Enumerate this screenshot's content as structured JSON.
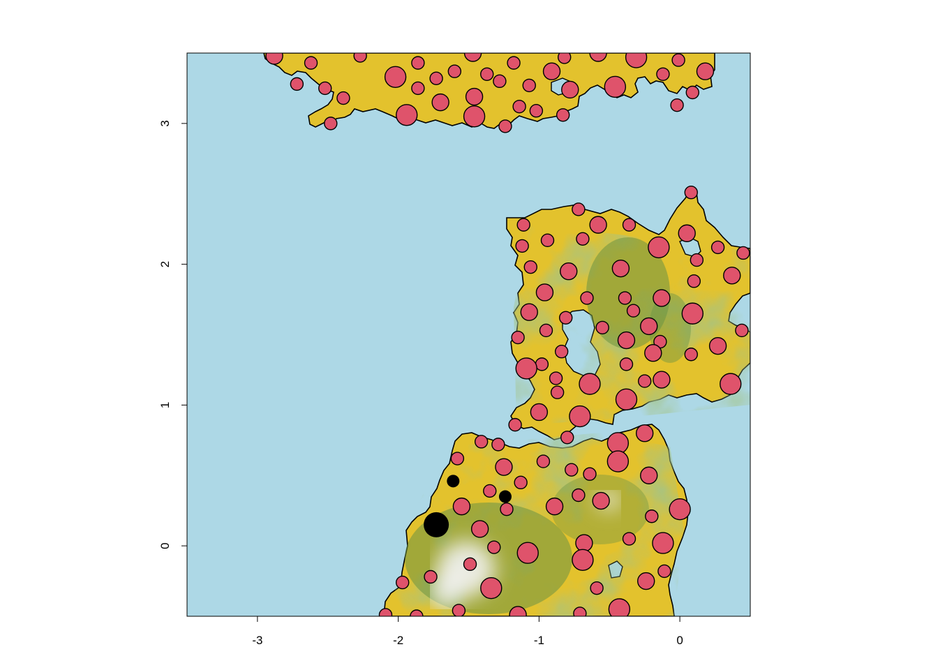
{
  "map": {
    "water_color": "#add8e6",
    "land_low_color": "#e3c22d",
    "land_mid_color": "#5f8c3c",
    "land_high_color": "#f2f2f2",
    "point_color": "#df536b",
    "special_point_color": "#000000",
    "xlim": [
      -3.5,
      0.5
    ],
    "ylim": [
      -0.5,
      3.5
    ],
    "x_ticks": [
      {
        "value": -3,
        "label": "-3"
      },
      {
        "value": -2,
        "label": "-2"
      },
      {
        "value": -1,
        "label": "-1"
      },
      {
        "value": 0,
        "label": "0"
      }
    ],
    "y_ticks": [
      {
        "value": 0,
        "label": "0"
      },
      {
        "value": 1,
        "label": "1"
      },
      {
        "value": 2,
        "label": "2"
      },
      {
        "value": 3,
        "label": "3"
      }
    ],
    "points": [
      {
        "x": -2.88,
        "y": 3.48,
        "s": 2
      },
      {
        "x": -2.27,
        "y": 3.48,
        "s": 1
      },
      {
        "x": -1.47,
        "y": 3.5,
        "s": 2
      },
      {
        "x": -0.82,
        "y": 3.47,
        "s": 1
      },
      {
        "x": -0.58,
        "y": 3.5,
        "s": 2
      },
      {
        "x": -0.31,
        "y": 3.47,
        "s": 3
      },
      {
        "x": -0.01,
        "y": 3.45,
        "s": 1
      },
      {
        "x": -2.62,
        "y": 3.43,
        "s": 1
      },
      {
        "x": -1.86,
        "y": 3.43,
        "s": 1
      },
      {
        "x": -1.18,
        "y": 3.43,
        "s": 1
      },
      {
        "x": -2.02,
        "y": 3.33,
        "s": 3
      },
      {
        "x": -1.6,
        "y": 3.37,
        "s": 1
      },
      {
        "x": -1.37,
        "y": 3.35,
        "s": 1
      },
      {
        "x": -0.91,
        "y": 3.37,
        "s": 2
      },
      {
        "x": -0.12,
        "y": 3.35,
        "s": 1
      },
      {
        "x": 0.18,
        "y": 3.37,
        "s": 2
      },
      {
        "x": -2.72,
        "y": 3.28,
        "s": 1
      },
      {
        "x": -1.73,
        "y": 3.32,
        "s": 1
      },
      {
        "x": -1.28,
        "y": 3.3,
        "s": 1
      },
      {
        "x": -1.07,
        "y": 3.27,
        "s": 1
      },
      {
        "x": -0.46,
        "y": 3.26,
        "s": 3
      },
      {
        "x": -2.52,
        "y": 3.25,
        "s": 1
      },
      {
        "x": -1.86,
        "y": 3.25,
        "s": 1
      },
      {
        "x": -0.78,
        "y": 3.24,
        "s": 2
      },
      {
        "x": 0.09,
        "y": 3.22,
        "s": 1
      },
      {
        "x": -2.39,
        "y": 3.18,
        "s": 1
      },
      {
        "x": -1.46,
        "y": 3.19,
        "s": 2
      },
      {
        "x": -1.7,
        "y": 3.15,
        "s": 2
      },
      {
        "x": -1.14,
        "y": 3.12,
        "s": 1
      },
      {
        "x": -1.02,
        "y": 3.09,
        "s": 1
      },
      {
        "x": -0.02,
        "y": 3.13,
        "s": 1
      },
      {
        "x": -1.94,
        "y": 3.06,
        "s": 3
      },
      {
        "x": -1.46,
        "y": 3.05,
        "s": 3
      },
      {
        "x": -0.83,
        "y": 3.06,
        "s": 1
      },
      {
        "x": -2.48,
        "y": 3.0,
        "s": 1
      },
      {
        "x": -1.24,
        "y": 2.98,
        "s": 1
      },
      {
        "x": 0.08,
        "y": 2.51,
        "s": 1
      },
      {
        "x": -0.72,
        "y": 2.39,
        "s": 1
      },
      {
        "x": -1.11,
        "y": 2.28,
        "s": 1
      },
      {
        "x": -0.58,
        "y": 2.28,
        "s": 2
      },
      {
        "x": -0.36,
        "y": 2.28,
        "s": 1
      },
      {
        "x": 0.05,
        "y": 2.22,
        "s": 2
      },
      {
        "x": -0.94,
        "y": 2.17,
        "s": 1
      },
      {
        "x": -0.69,
        "y": 2.18,
        "s": 1
      },
      {
        "x": -1.12,
        "y": 2.13,
        "s": 1
      },
      {
        "x": -0.15,
        "y": 2.12,
        "s": 3
      },
      {
        "x": 0.27,
        "y": 2.12,
        "s": 1
      },
      {
        "x": 0.45,
        "y": 2.08,
        "s": 1
      },
      {
        "x": 0.12,
        "y": 2.03,
        "s": 1
      },
      {
        "x": -1.06,
        "y": 1.98,
        "s": 1
      },
      {
        "x": -0.79,
        "y": 1.95,
        "s": 2
      },
      {
        "x": -0.42,
        "y": 1.97,
        "s": 2
      },
      {
        "x": 0.37,
        "y": 1.92,
        "s": 2
      },
      {
        "x": 0.1,
        "y": 1.88,
        "s": 1
      },
      {
        "x": -0.96,
        "y": 1.8,
        "s": 2
      },
      {
        "x": -0.66,
        "y": 1.76,
        "s": 1
      },
      {
        "x": -0.39,
        "y": 1.76,
        "s": 1
      },
      {
        "x": -0.13,
        "y": 1.76,
        "s": 2
      },
      {
        "x": -1.07,
        "y": 1.66,
        "s": 2
      },
      {
        "x": -0.81,
        "y": 1.62,
        "s": 1
      },
      {
        "x": -0.33,
        "y": 1.67,
        "s": 1
      },
      {
        "x": 0.09,
        "y": 1.65,
        "s": 3
      },
      {
        "x": -0.95,
        "y": 1.53,
        "s": 1
      },
      {
        "x": -0.55,
        "y": 1.55,
        "s": 1
      },
      {
        "x": -0.22,
        "y": 1.56,
        "s": 2
      },
      {
        "x": 0.44,
        "y": 1.53,
        "s": 1
      },
      {
        "x": -1.15,
        "y": 1.48,
        "s": 1
      },
      {
        "x": -0.38,
        "y": 1.46,
        "s": 2
      },
      {
        "x": -0.14,
        "y": 1.45,
        "s": 1
      },
      {
        "x": 0.27,
        "y": 1.42,
        "s": 2
      },
      {
        "x": -0.84,
        "y": 1.38,
        "s": 1
      },
      {
        "x": -0.19,
        "y": 1.37,
        "s": 2
      },
      {
        "x": 0.08,
        "y": 1.36,
        "s": 1
      },
      {
        "x": -0.38,
        "y": 1.29,
        "s": 1
      },
      {
        "x": -0.98,
        "y": 1.29,
        "s": 1
      },
      {
        "x": -1.09,
        "y": 1.26,
        "s": 3
      },
      {
        "x": -0.88,
        "y": 1.19,
        "s": 1
      },
      {
        "x": -0.13,
        "y": 1.18,
        "s": 2
      },
      {
        "x": -0.25,
        "y": 1.17,
        "s": 1
      },
      {
        "x": -0.64,
        "y": 1.15,
        "s": 3
      },
      {
        "x": 0.36,
        "y": 1.15,
        "s": 3
      },
      {
        "x": -0.87,
        "y": 1.09,
        "s": 1
      },
      {
        "x": -0.38,
        "y": 1.04,
        "s": 3
      },
      {
        "x": -1.0,
        "y": 0.95,
        "s": 2
      },
      {
        "x": -0.71,
        "y": 0.92,
        "s": 3
      },
      {
        "x": -1.17,
        "y": 0.86,
        "s": 1
      },
      {
        "x": -0.25,
        "y": 0.8,
        "s": 2
      },
      {
        "x": -0.8,
        "y": 0.77,
        "s": 1
      },
      {
        "x": -1.41,
        "y": 0.74,
        "s": 1
      },
      {
        "x": -1.29,
        "y": 0.72,
        "s": 1
      },
      {
        "x": -0.44,
        "y": 0.73,
        "s": 3
      },
      {
        "x": -1.58,
        "y": 0.62,
        "s": 1
      },
      {
        "x": -0.97,
        "y": 0.6,
        "s": 1
      },
      {
        "x": -0.44,
        "y": 0.6,
        "s": 3
      },
      {
        "x": -1.25,
        "y": 0.56,
        "s": 2
      },
      {
        "x": -0.77,
        "y": 0.54,
        "s": 1
      },
      {
        "x": -0.64,
        "y": 0.51,
        "s": 1
      },
      {
        "x": -0.22,
        "y": 0.5,
        "s": 2
      },
      {
        "x": -1.13,
        "y": 0.45,
        "s": 1
      },
      {
        "x": -1.35,
        "y": 0.39,
        "s": 1
      },
      {
        "x": -0.72,
        "y": 0.36,
        "s": 1
      },
      {
        "x": -0.56,
        "y": 0.32,
        "s": 2
      },
      {
        "x": -1.55,
        "y": 0.28,
        "s": 2
      },
      {
        "x": -0.89,
        "y": 0.28,
        "s": 2
      },
      {
        "x": -1.23,
        "y": 0.26,
        "s": 1
      },
      {
        "x": 0.0,
        "y": 0.26,
        "s": 3
      },
      {
        "x": -0.2,
        "y": 0.21,
        "s": 1
      },
      {
        "x": -1.42,
        "y": 0.12,
        "s": 2
      },
      {
        "x": -0.36,
        "y": 0.05,
        "s": 1
      },
      {
        "x": -0.68,
        "y": 0.02,
        "s": 2
      },
      {
        "x": -0.12,
        "y": 0.02,
        "s": 3
      },
      {
        "x": -1.32,
        "y": -0.01,
        "s": 1
      },
      {
        "x": -1.08,
        "y": -0.05,
        "s": 3
      },
      {
        "x": -1.49,
        "y": -0.13,
        "s": 1
      },
      {
        "x": -0.69,
        "y": -0.1,
        "s": 3
      },
      {
        "x": -0.11,
        "y": -0.18,
        "s": 1
      },
      {
        "x": -1.77,
        "y": -0.22,
        "s": 1
      },
      {
        "x": -1.97,
        "y": -0.26,
        "s": 1
      },
      {
        "x": -0.24,
        "y": -0.25,
        "s": 2
      },
      {
        "x": -1.34,
        "y": -0.3,
        "s": 3
      },
      {
        "x": -0.59,
        "y": -0.3,
        "s": 1
      },
      {
        "x": -0.43,
        "y": -0.45,
        "s": 3
      },
      {
        "x": -1.57,
        "y": -0.46,
        "s": 1
      },
      {
        "x": -1.15,
        "y": -0.49,
        "s": 2
      },
      {
        "x": -0.71,
        "y": -0.48,
        "s": 1
      },
      {
        "x": -2.09,
        "y": -0.49,
        "s": 1
      },
      {
        "x": -1.87,
        "y": -0.5,
        "s": 1
      }
    ],
    "special_points": [
      {
        "x": -1.73,
        "y": 0.15,
        "s": 4
      },
      {
        "x": -1.61,
        "y": 0.46,
        "s": 1
      },
      {
        "x": -1.24,
        "y": 0.35,
        "s": 1
      }
    ]
  }
}
